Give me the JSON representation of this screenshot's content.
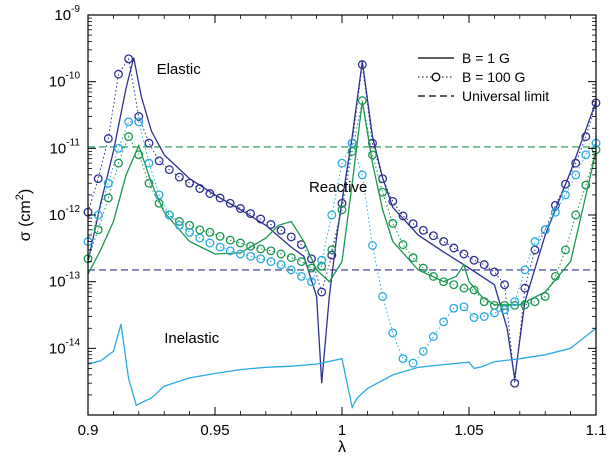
{
  "chart_data": {
    "type": "line",
    "title": "",
    "xlabel": "λ",
    "ylabel": "σ (cm²)",
    "ylabel_parts": {
      "symbol": "σ (cm",
      "sup": "2",
      "close": ")"
    },
    "x_range": [
      0.9,
      1.1
    ],
    "y_range": [
      1e-15,
      1e-09
    ],
    "y_scale": "log",
    "grid": false,
    "legend_position": "top-right",
    "x_ticks": [
      {
        "value": 0.9,
        "label": "0.9"
      },
      {
        "value": 0.95,
        "label": "0.95"
      },
      {
        "value": 1.0,
        "label": "1"
      },
      {
        "value": 1.05,
        "label": "1.05"
      },
      {
        "value": 1.1,
        "label": "1.1"
      }
    ],
    "y_ticks": [
      {
        "exp": -14,
        "base": "10",
        "sup": "-14"
      },
      {
        "exp": -13,
        "base": "10",
        "sup": "-13"
      },
      {
        "exp": -12,
        "base": "10",
        "sup": "-12"
      },
      {
        "exp": -11,
        "base": "10",
        "sup": "-11"
      },
      {
        "exp": -10,
        "base": "10",
        "sup": "-10"
      },
      {
        "exp": -9,
        "base": "10",
        "sup": "-9"
      }
    ],
    "legend": [
      {
        "label": "B = 1 G",
        "style": "solid"
      },
      {
        "label": "B = 100 G",
        "style": "dotted-circle"
      },
      {
        "label": "Universal limit",
        "style": "dashed"
      }
    ],
    "annotations": [
      {
        "text": "Elastic",
        "color": "#2e3192",
        "x": 0.927,
        "y": 1.3e-10
      },
      {
        "text": "Reactive",
        "color": "#1a9850",
        "x": 0.987,
        "y": 2.2e-12
      },
      {
        "text": "Inelastic",
        "color": "#29abe2",
        "x": 0.93,
        "y": 1.2e-14
      }
    ],
    "universal_limits": [
      {
        "name": "Elastic/Reactive limit (green)",
        "color": "#1a9850",
        "y": 1.05e-11
      },
      {
        "name": "limit (navy)",
        "color": "#2e3192",
        "y": 1.5e-13
      }
    ],
    "series": [
      {
        "name": "Elastic",
        "field": "B = 1 G",
        "color": "#2e3192",
        "x": [
          0.9,
          0.905,
          0.91,
          0.915,
          0.918,
          0.921,
          0.925,
          0.93,
          0.94,
          0.95,
          0.96,
          0.97,
          0.98,
          0.985,
          0.99,
          0.992,
          0.995,
          0.998,
          1.0,
          1.004,
          1.008,
          1.012,
          1.016,
          1.02,
          1.03,
          1.04,
          1.05,
          1.06,
          1.065,
          1.068,
          1.072,
          1.08,
          1.09,
          1.1
        ],
        "y": [
          2e-13,
          1.5e-12,
          9e-12,
          8e-11,
          2.3e-10,
          6e-11,
          1.8e-11,
          8e-12,
          3.5e-12,
          2e-12,
          1.2e-12,
          7e-13,
          3.3e-13,
          2.4e-13,
          6e-14,
          3e-15,
          6e-14,
          5e-13,
          1.6e-12,
          1.5e-11,
          2e-10,
          1.5e-11,
          3.6e-12,
          1.3e-12,
          5e-13,
          2.8e-13,
          1.6e-13,
          9e-14,
          2e-14,
          3.5e-15,
          5e-14,
          5e-13,
          4.5e-12,
          5e-11
        ]
      },
      {
        "name": "Elastic",
        "field": "B = 100 G",
        "color": "#2e3192",
        "x": [
          0.9,
          0.904,
          0.908,
          0.912,
          0.916,
          0.92,
          0.924,
          0.928,
          0.932,
          0.936,
          0.94,
          0.944,
          0.948,
          0.952,
          0.956,
          0.96,
          0.964,
          0.968,
          0.972,
          0.976,
          0.98,
          0.984,
          0.988,
          0.992,
          0.996,
          1.0,
          1.004,
          1.008,
          1.012,
          1.016,
          1.02,
          1.024,
          1.028,
          1.032,
          1.036,
          1.04,
          1.044,
          1.048,
          1.052,
          1.056,
          1.06,
          1.064,
          1.068,
          1.072,
          1.076,
          1.08,
          1.084,
          1.088,
          1.092,
          1.096,
          1.1
        ],
        "y": [
          1.1e-12,
          3.5e-12,
          1.4e-11,
          1.3e-10,
          2.2e-10,
          3e-11,
          1.2e-11,
          6.5e-12,
          4.8e-12,
          3.7e-12,
          3e-12,
          2.5e-12,
          2.1e-12,
          1.8e-12,
          1.5e-12,
          1.25e-12,
          1.05e-12,
          8.7e-13,
          7.2e-13,
          5.9e-13,
          4.7e-13,
          3.6e-13,
          2.2e-13,
          7e-14,
          2.5e-13,
          1.5e-12,
          1.2e-11,
          1.8e-10,
          1.2e-11,
          3.5e-12,
          1.6e-12,
          9.7e-13,
          7.4e-13,
          5.9e-13,
          4.9e-13,
          4e-13,
          3.2e-13,
          2.6e-13,
          2.1e-13,
          1.8e-13,
          1.4e-13,
          9e-14,
          3e-15,
          8e-14,
          3e-13,
          6e-13,
          1.4e-12,
          2.9e-12,
          6e-12,
          1.5e-11,
          4.8e-11
        ]
      },
      {
        "name": "Reactive",
        "field": "B = 1 G",
        "color": "#1a9850",
        "x": [
          0.9,
          0.905,
          0.91,
          0.915,
          0.92,
          0.925,
          0.93,
          0.94,
          0.95,
          0.96,
          0.97,
          0.975,
          0.98,
          0.985,
          0.99,
          0.995,
          1.0,
          1.004,
          1.008,
          1.012,
          1.016,
          1.02,
          1.03,
          1.04,
          1.045,
          1.048,
          1.05,
          1.055,
          1.06,
          1.07,
          1.08,
          1.09,
          1.1
        ],
        "y": [
          1.3e-13,
          3e-13,
          8e-13,
          4e-12,
          1.1e-11,
          3e-12,
          1.1e-12,
          4e-13,
          2.6e-13,
          2.7e-13,
          4.5e-13,
          7e-13,
          8e-13,
          4e-13,
          1.5e-13,
          1e-13,
          2e-13,
          3e-12,
          5e-11,
          6e-12,
          1.2e-12,
          4e-13,
          1.5e-13,
          1e-13,
          1.2e-13,
          1.8e-13,
          1e-13,
          6e-14,
          4.5e-14,
          4.5e-14,
          7e-14,
          2e-13,
          9e-12
        ]
      },
      {
        "name": "Reactive",
        "field": "B = 100 G",
        "color": "#1a9850",
        "x": [
          0.9,
          0.904,
          0.908,
          0.912,
          0.916,
          0.92,
          0.924,
          0.928,
          0.932,
          0.936,
          0.94,
          0.944,
          0.948,
          0.952,
          0.956,
          0.96,
          0.964,
          0.968,
          0.972,
          0.976,
          0.98,
          0.984,
          0.988,
          0.992,
          0.996,
          1.0,
          1.004,
          1.008,
          1.012,
          1.016,
          1.02,
          1.024,
          1.028,
          1.032,
          1.036,
          1.04,
          1.044,
          1.048,
          1.052,
          1.056,
          1.06,
          1.064,
          1.068,
          1.072,
          1.076,
          1.08,
          1.084,
          1.088,
          1.092,
          1.096,
          1.1
        ],
        "y": [
          2.2e-13,
          6e-13,
          1.8e-12,
          6e-12,
          1.5e-11,
          8e-12,
          3e-12,
          1.5e-12,
          1e-12,
          8e-13,
          7e-13,
          6e-13,
          5.5e-13,
          4.8e-13,
          4.2e-13,
          3.8e-13,
          3.4e-13,
          3.1e-13,
          2.9e-13,
          2.6e-13,
          2.3e-13,
          2e-13,
          1.6e-13,
          1.7e-13,
          3e-13,
          1.2e-12,
          9e-12,
          5.2e-11,
          8e-12,
          2.2e-12,
          7.5e-13,
          3.6e-13,
          2.3e-13,
          1.6e-13,
          1.2e-13,
          1e-13,
          9e-14,
          8e-14,
          7.5e-14,
          5e-14,
          4.4e-14,
          4.4e-14,
          4.4e-14,
          4.5e-14,
          5e-14,
          6e-14,
          1.2e-13,
          3e-13,
          1e-12,
          2.8e-12,
          9.5e-12
        ]
      },
      {
        "name": "Inelastic",
        "field": "B = 1 G",
        "color": "#29abe2",
        "x": [
          0.9,
          0.905,
          0.91,
          0.913,
          0.916,
          0.919,
          0.922,
          0.925,
          0.93,
          0.94,
          0.95,
          0.96,
          0.97,
          0.98,
          0.99,
          1.0,
          1.002,
          1.004,
          1.006,
          1.01,
          1.02,
          1.03,
          1.04,
          1.05,
          1.052,
          1.055,
          1.06,
          1.07,
          1.08,
          1.09,
          1.1
        ],
        "y": [
          5.8e-15,
          6.5e-15,
          9e-15,
          2.3e-14,
          3.5e-15,
          1.4e-15,
          1.6e-15,
          1.8e-15,
          2.7e-15,
          3.6e-15,
          4.2e-15,
          4.8e-15,
          5.2e-15,
          5.4e-15,
          5.8e-15,
          7e-15,
          3e-15,
          1.3e-15,
          1.8e-15,
          2.5e-15,
          4e-15,
          5.2e-15,
          5.7e-15,
          6.2e-15,
          5e-15,
          5.3e-15,
          6.3e-15,
          7e-15,
          8e-15,
          1e-14,
          2e-14
        ]
      },
      {
        "name": "Inelastic",
        "field": "B = 100 G",
        "color": "#29abe2",
        "x": [
          0.9,
          0.904,
          0.908,
          0.912,
          0.916,
          0.92,
          0.924,
          0.928,
          0.932,
          0.936,
          0.94,
          0.944,
          0.948,
          0.952,
          0.956,
          0.96,
          0.964,
          0.968,
          0.972,
          0.976,
          0.98,
          0.984,
          0.988,
          0.992,
          0.996,
          1.0,
          1.004,
          1.008,
          1.012,
          1.016,
          1.02,
          1.024,
          1.028,
          1.032,
          1.036,
          1.04,
          1.044,
          1.048,
          1.052,
          1.056,
          1.06,
          1.064,
          1.068,
          1.072,
          1.076,
          1.08,
          1.084,
          1.088,
          1.092,
          1.096,
          1.1
        ],
        "y": [
          4e-13,
          1e-12,
          3e-12,
          1e-11,
          2.5e-11,
          2.5e-11,
          6e-12,
          2e-12,
          1e-12,
          7e-13,
          5.5e-13,
          4.5e-13,
          3.8e-13,
          3.3e-13,
          2.9e-13,
          2.6e-13,
          2.4e-13,
          2.2e-13,
          2e-13,
          1.8e-13,
          1.5e-13,
          1.2e-13,
          1e-13,
          2.1e-13,
          1e-12,
          6e-12,
          1.2e-11,
          4e-12,
          3.5e-13,
          6e-14,
          1.7e-14,
          7e-15,
          6e-15,
          9e-15,
          1.5e-14,
          2.5e-14,
          4e-14,
          4.2e-14,
          2.9e-14,
          3e-14,
          3.4e-14,
          3.8e-14,
          5e-14,
          1.5e-13,
          4e-13,
          6e-13,
          1.1e-12,
          2e-12,
          4e-12,
          8e-12,
          1.2e-11
        ]
      }
    ]
  }
}
